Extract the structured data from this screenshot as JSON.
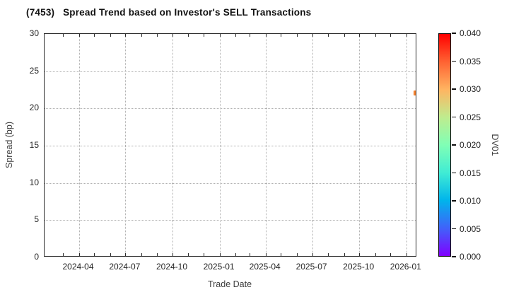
{
  "chart_data": {
    "type": "scatter",
    "title": "(7453)   Spread Trend based on Investor's SELL Transactions",
    "xlabel": "Trade Date",
    "ylabel": "Spread (bp)",
    "grid": true,
    "x_axis": {
      "min": "2024-01-25",
      "max": "2026-01-22",
      "major_ticks": [
        "2024-04",
        "2024-07",
        "2024-10",
        "2025-01",
        "2025-04",
        "2025-07",
        "2025-10",
        "2026-01"
      ],
      "minor_tick_unit": "month"
    },
    "y_axis": {
      "min": 0,
      "max": 30,
      "ticks": [
        0,
        5,
        10,
        15,
        20,
        25,
        30
      ]
    },
    "series": [
      {
        "name": "SELL transactions",
        "points": [
          {
            "date": "2026-01-20",
            "spread_bp": 22.1,
            "dv01": 0.033,
            "color": "#f5822f"
          }
        ]
      }
    ],
    "colorbar": {
      "label": "DV01",
      "min": 0.0,
      "max": 0.04,
      "tick_labels": [
        "0.000",
        "0.005",
        "0.010",
        "0.015",
        "0.020",
        "0.025",
        "0.030",
        "0.035",
        "0.040"
      ],
      "colormap": "rainbow",
      "stops": [
        {
          "t": 0.0,
          "color": "#8000ff"
        },
        {
          "t": 0.125,
          "color": "#4062fa"
        },
        {
          "t": 0.25,
          "color": "#00b4eb"
        },
        {
          "t": 0.375,
          "color": "#40ecd4"
        },
        {
          "t": 0.5,
          "color": "#80ffb5"
        },
        {
          "t": 0.625,
          "color": "#bfec8e"
        },
        {
          "t": 0.75,
          "color": "#ffb461"
        },
        {
          "t": 0.875,
          "color": "#ff6232"
        },
        {
          "t": 1.0,
          "color": "#ff0000"
        }
      ]
    },
    "colors": {
      "grid": "#b0b0b0",
      "spine": "#2b2b2b",
      "tick_text": "#262626",
      "background": "#ffffff"
    }
  }
}
